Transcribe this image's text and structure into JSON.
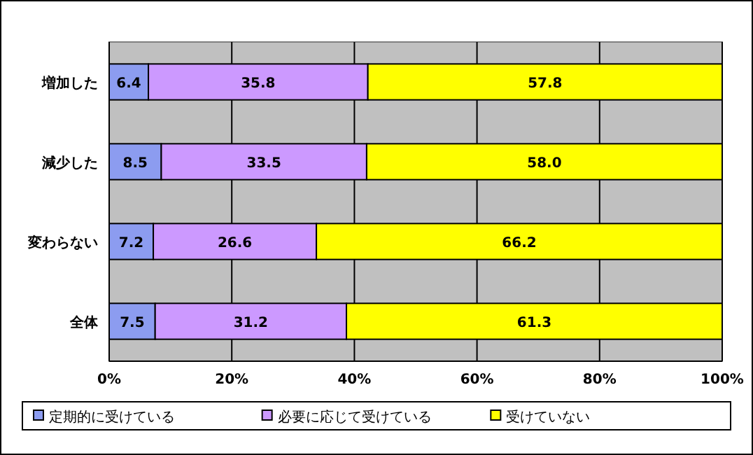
{
  "chart_data": {
    "type": "bar",
    "orientation": "horizontal",
    "stacked": true,
    "categories": [
      "増加した",
      "減少した",
      "変わらない",
      "全体"
    ],
    "series": [
      {
        "name": "定期的に受けている",
        "color": "#8c9cf0",
        "values": [
          6.4,
          8.5,
          7.2,
          7.5
        ],
        "value_labels": [
          "6.4",
          "8.5",
          "7.2",
          "7.5"
        ]
      },
      {
        "name": "必要に応じて受けている",
        "color": "#cc99ff",
        "values": [
          35.8,
          33.5,
          26.6,
          31.2
        ],
        "value_labels": [
          "35.8",
          "33.5",
          "26.6",
          "31.2"
        ]
      },
      {
        "name": "受けていない",
        "color": "#ffff00",
        "values": [
          57.8,
          58.0,
          66.2,
          61.3
        ],
        "value_labels": [
          "57.8",
          "58.0",
          "66.2",
          "61.3"
        ]
      }
    ],
    "xlim": [
      0,
      100
    ],
    "xticks": [
      {
        "value": 0,
        "label": "0%"
      },
      {
        "value": 20,
        "label": "20%"
      },
      {
        "value": 40,
        "label": "40%"
      },
      {
        "value": 60,
        "label": "60%"
      },
      {
        "value": 80,
        "label": "80%"
      },
      {
        "value": 100,
        "label": "100%"
      }
    ],
    "grid": "x",
    "legend": "bottom"
  }
}
